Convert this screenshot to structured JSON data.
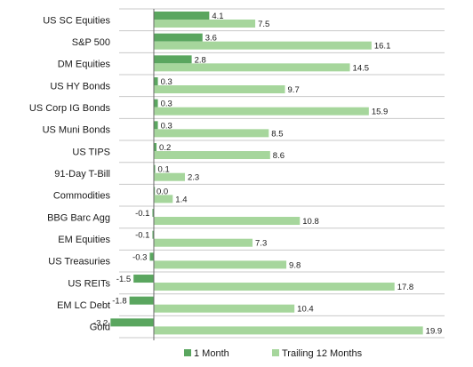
{
  "chart_data": {
    "type": "bar",
    "orientation": "horizontal",
    "categories": [
      "US SC Equities",
      "S&P 500",
      "DM Equities",
      "US HY Bonds",
      "US Corp IG Bonds",
      "US Muni Bonds",
      "US TIPS",
      "91-Day T-Bill",
      "Commodities",
      "BBG Barc Agg",
      "EM Equities",
      "US Treasuries",
      "US REITs",
      "EM LC Debt",
      "Gold"
    ],
    "series": [
      {
        "name": "1 Month",
        "color": "#5aa65f",
        "values": [
          4.1,
          3.6,
          2.8,
          0.3,
          0.3,
          0.3,
          0.2,
          0.1,
          0.0,
          -0.1,
          -0.1,
          -0.3,
          -1.5,
          -1.8,
          -3.2
        ]
      },
      {
        "name": "Trailing 12 Months",
        "color": "#a6d69c",
        "values": [
          7.5,
          16.1,
          14.5,
          9.7,
          15.9,
          8.5,
          8.6,
          2.3,
          1.4,
          10.8,
          7.3,
          9.8,
          17.8,
          10.4,
          19.9
        ]
      }
    ],
    "value_labels": [
      [
        "4.1",
        "3.6",
        "2.8",
        "0.3",
        "0.3",
        "0.3",
        "0.2",
        "0.1",
        "0.0",
        "-0.1",
        "-0.1",
        "-0.3",
        "-1.5",
        "-1.8",
        "-3.2"
      ],
      [
        "7.5",
        "16.1",
        "14.5",
        "9.7",
        "15.9",
        "8.5",
        "8.6",
        "2.3",
        "1.4",
        "10.8",
        "7.3",
        "9.8",
        "17.8",
        "10.4",
        "19.9"
      ]
    ],
    "title": "",
    "xlabel": "",
    "ylabel": "",
    "xlim": [
      -4.1,
      21.5
    ],
    "grid": false,
    "gridlines": "horizontal row separators",
    "legend": "bottom-center",
    "axis_color": "#6b6b6b",
    "separator_color": "#c8c8c8"
  }
}
